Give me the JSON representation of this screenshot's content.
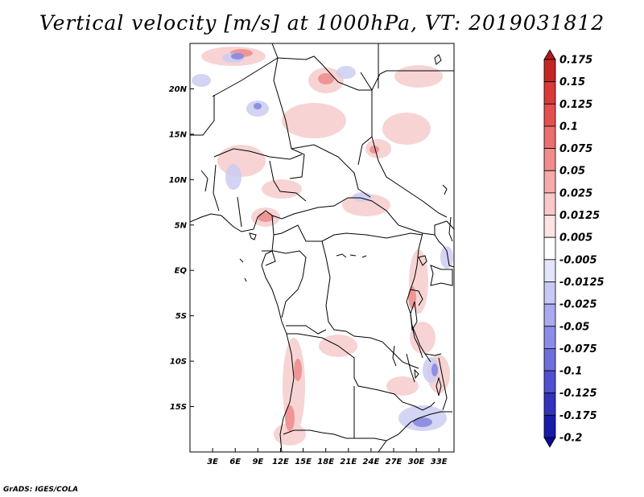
{
  "title": "Vertical velocity [m/s] at 1000hPa, VT: 2019031812",
  "footer": "GrADS: IGES/COLA",
  "map": {
    "lon_range": [
      0,
      35
    ],
    "lat_range": [
      -20,
      25
    ],
    "lat_ticks": [
      "20N",
      "15N",
      "10N",
      "5N",
      "EQ",
      "5S",
      "10S",
      "15S"
    ],
    "lon_ticks": [
      "3E",
      "6E",
      "9E",
      "12E",
      "15E",
      "18E",
      "21E",
      "24E",
      "27E",
      "30E",
      "33E"
    ]
  },
  "colorbar": {
    "labels": [
      "0.175",
      "0.15",
      "0.125",
      "0.1",
      "0.075",
      "0.05",
      "0.025",
      "0.0125",
      "0.005",
      "-0.005",
      "-0.0125",
      "-0.025",
      "-0.05",
      "-0.075",
      "-0.1",
      "-0.125",
      "-0.175",
      "-0.2"
    ],
    "colors": [
      "#b01a1a",
      "#c42626",
      "#d83a3a",
      "#e45050",
      "#ec6e6e",
      "#f28c8c",
      "#f6aaaa",
      "#fac8c8",
      "#fde4e4",
      "#ffffff",
      "#e4e4fa",
      "#c8c8f4",
      "#aaaaee",
      "#8c8ce8",
      "#6e6edc",
      "#5050d0",
      "#3232bc",
      "#1a1aa8",
      "#0a0a96"
    ]
  }
}
